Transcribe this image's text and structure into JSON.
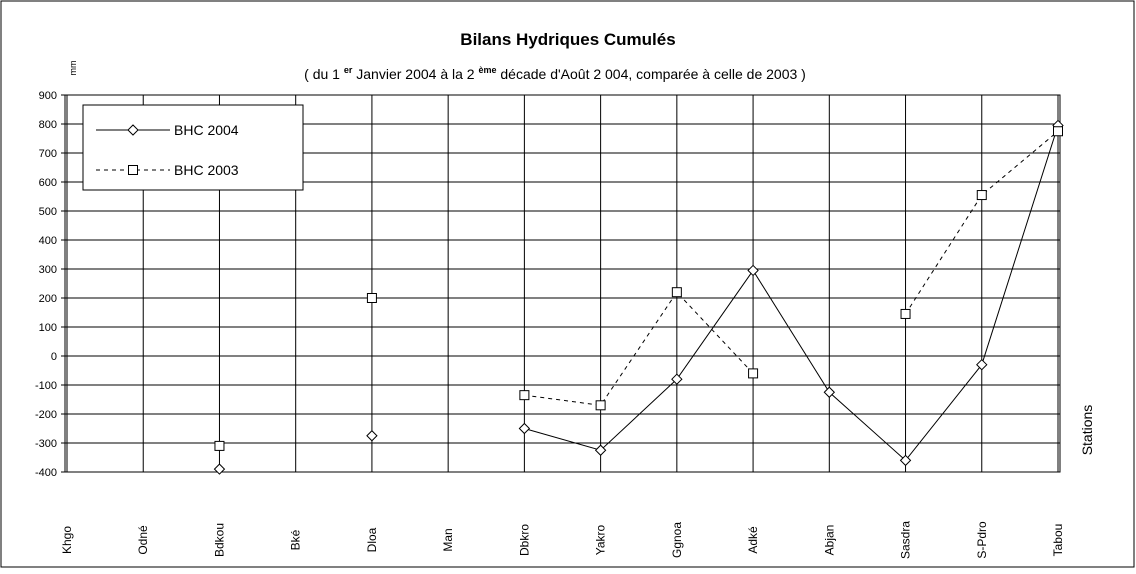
{
  "chart_data": {
    "type": "line",
    "title": "Bilans Hydriques Cumulés",
    "subtitle": [
      "( du 1 ",
      "er",
      " Janvier 2004  à  la 2 ",
      "ème",
      " décade d'Août  2 004, comparée à celle de 2003 )"
    ],
    "y_label": "mm",
    "x_label": "Stations",
    "categories": [
      "Khgo",
      "Odné",
      "Bdkou",
      "Bké",
      "Dloa",
      "Man",
      "Dbkro",
      "Yakro",
      "Ggnoa",
      "Adké",
      "Abjan",
      "Sasdra",
      "S-Pdro",
      "Tabou"
    ],
    "series": [
      {
        "name": "BHC 2004",
        "color": "#000000",
        "dashed": false,
        "marker": "diamond",
        "values": [
          null,
          null,
          -390,
          null,
          -275,
          null,
          -250,
          -325,
          -80,
          295,
          -125,
          -360,
          -30,
          795
        ]
      },
      {
        "name": "BHC 2003",
        "color": "#000000",
        "dashed": true,
        "marker": "square",
        "values": [
          null,
          null,
          -310,
          null,
          200,
          null,
          -135,
          -170,
          220,
          -60,
          null,
          145,
          555,
          775
        ]
      }
    ],
    "ylim": [
      -400,
      900
    ],
    "yticks": [
      -400,
      -300,
      -200,
      -100,
      0,
      100,
      200,
      300,
      400,
      500,
      600,
      700,
      800,
      900
    ],
    "grid": true,
    "legend": "top-left"
  }
}
